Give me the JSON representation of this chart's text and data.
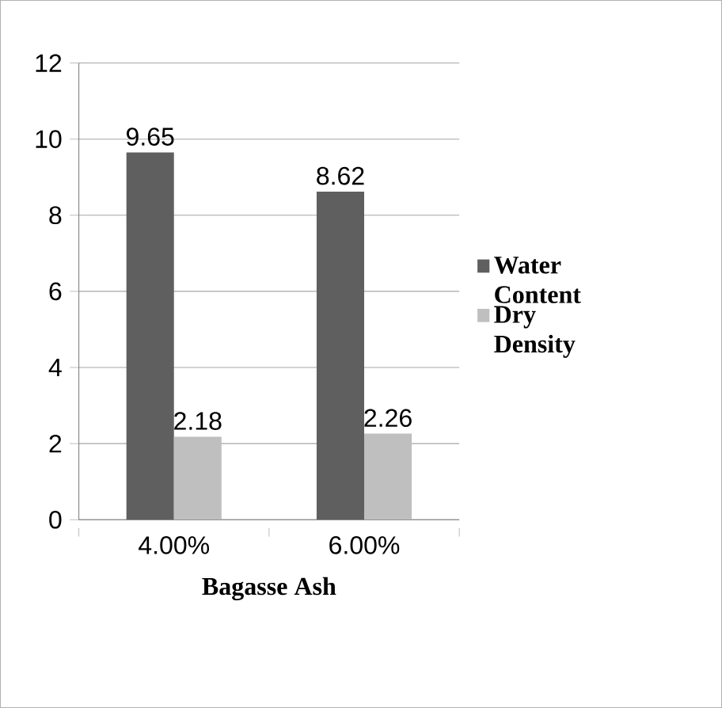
{
  "chart_data": {
    "type": "bar",
    "xlabel": "Bagasse Ash",
    "categories": [
      "4.00%",
      "6.00%"
    ],
    "series": [
      {
        "name": "Water Content",
        "color": "#5f5f5f",
        "values": [
          9.65,
          8.62
        ]
      },
      {
        "name": "Dry Density",
        "color": "#bfbfbf",
        "values": [
          2.18,
          2.26
        ]
      }
    ],
    "ylim": [
      0,
      12
    ],
    "yticks": [
      0,
      2,
      4,
      6,
      8,
      10,
      12
    ],
    "grid": "y",
    "legend": "right",
    "data_labels": true
  }
}
